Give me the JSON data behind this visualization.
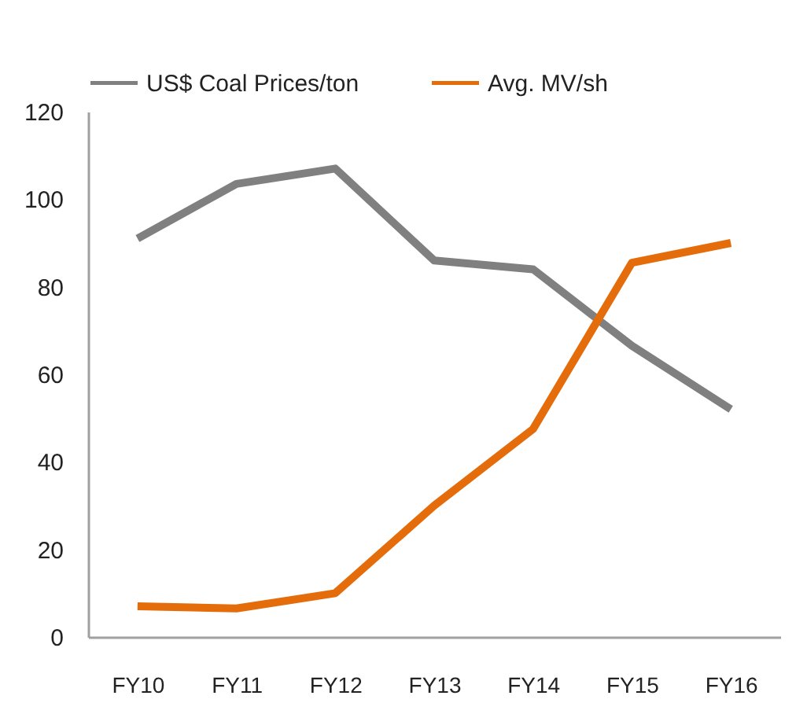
{
  "chart_data": {
    "type": "line",
    "categories": [
      "FY10",
      "FY11",
      "FY12",
      "FY13",
      "FY14",
      "FY15",
      "FY16"
    ],
    "series": [
      {
        "name": "US$ Coal Prices/ton",
        "color": "#808080",
        "values": [
          91,
          103.5,
          107,
          86,
          84,
          66.5,
          52
        ]
      },
      {
        "name": "Avg. MV/sh",
        "color": "#e46c0a",
        "values": [
          7,
          6.5,
          10,
          30,
          47.5,
          85.5,
          90
        ]
      }
    ],
    "ylim": [
      0,
      120
    ],
    "yticks": [
      0,
      20,
      40,
      60,
      80,
      100,
      120
    ],
    "grid": false,
    "legend": "top",
    "marker": "none",
    "line_style": "solid"
  }
}
